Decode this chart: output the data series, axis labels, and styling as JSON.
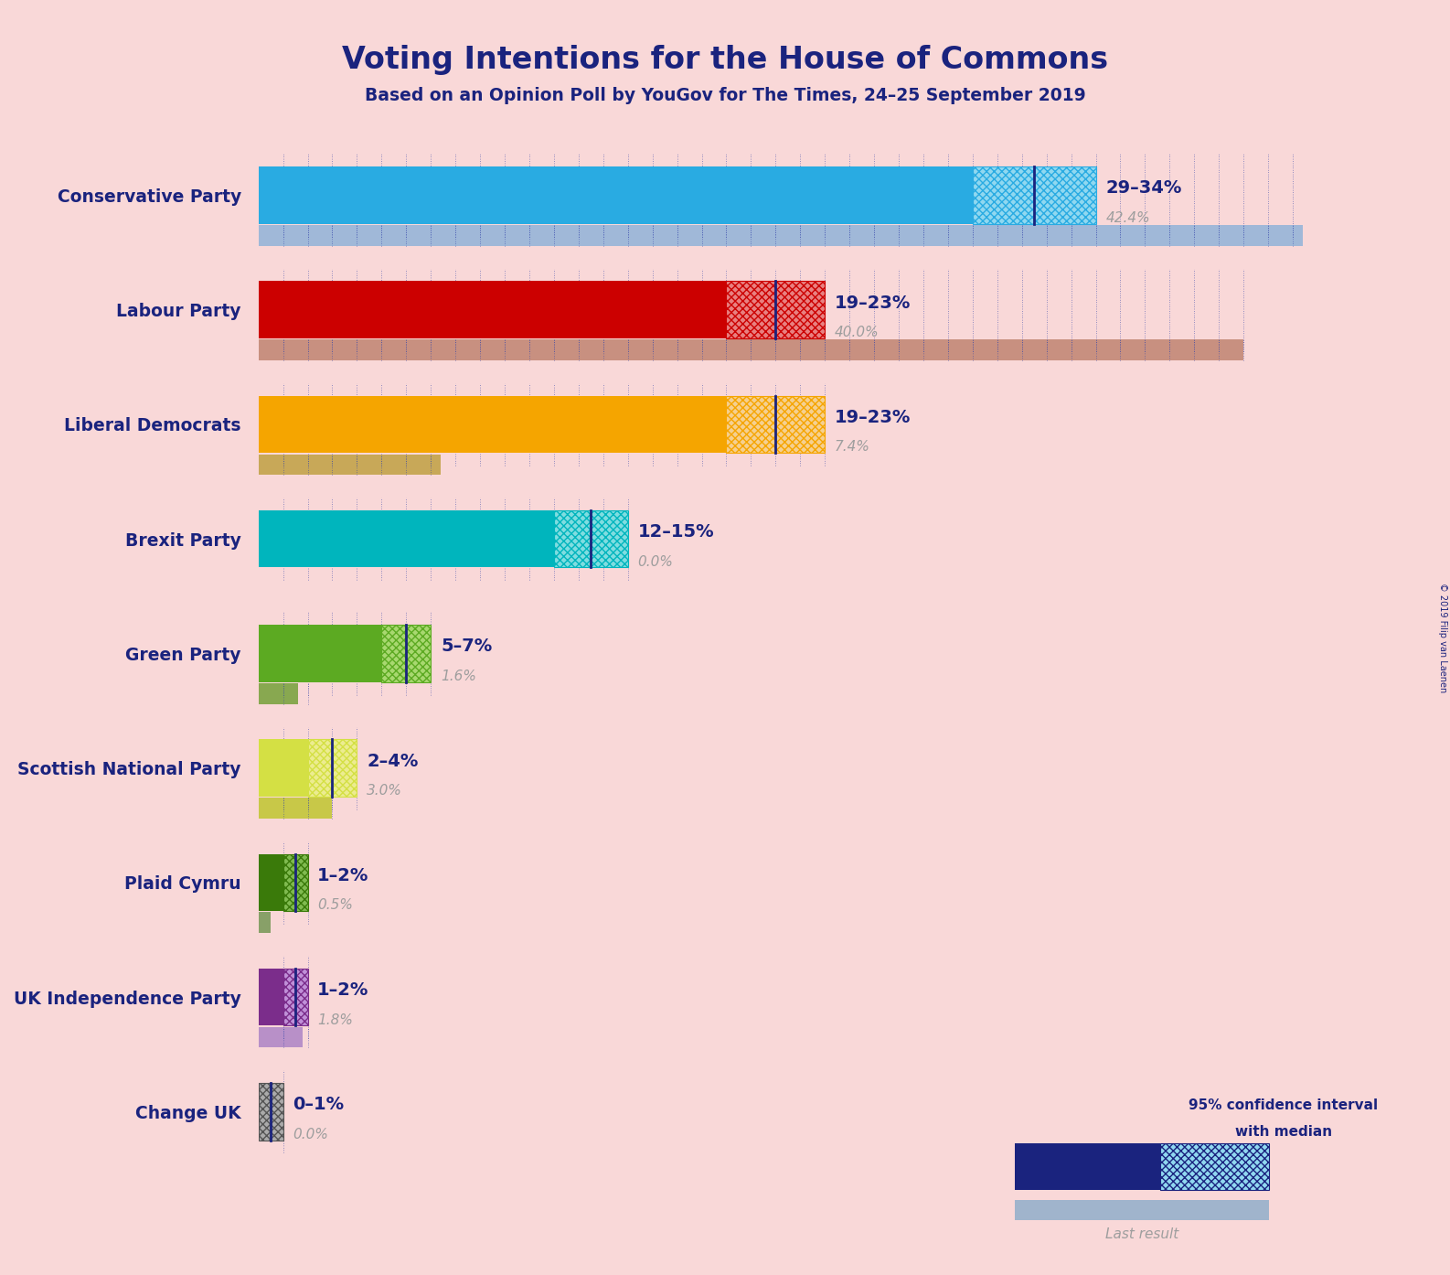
{
  "title": "Voting Intentions for the House of Commons",
  "subtitle": "Based on an Opinion Poll by YouGov for The Times, 24–25 September 2019",
  "copyright": "© 2019 Filip van Laenen",
  "background_color": "#f9d8d8",
  "parties": [
    "Conservative Party",
    "Labour Party",
    "Liberal Democrats",
    "Brexit Party",
    "Green Party",
    "Scottish National Party",
    "Plaid Cymru",
    "UK Independence Party",
    "Change UK"
  ],
  "bar_low": [
    29,
    19,
    19,
    12,
    5,
    2,
    1,
    1,
    0
  ],
  "bar_high": [
    34,
    23,
    23,
    15,
    7,
    4,
    2,
    2,
    1
  ],
  "last_result": [
    42.4,
    40.0,
    7.4,
    0.0,
    1.6,
    3.0,
    0.5,
    1.8,
    0.0
  ],
  "range_labels": [
    "29–34%",
    "19–23%",
    "19–23%",
    "12–15%",
    "5–7%",
    "2–4%",
    "1–2%",
    "1–2%",
    "0–1%"
  ],
  "last_result_labels": [
    "42.4%",
    "40.0%",
    "7.4%",
    "0.0%",
    "1.6%",
    "3.0%",
    "0.5%",
    "1.8%",
    "0.0%"
  ],
  "bar_colors": [
    "#29abe2",
    "#cc0000",
    "#f5a500",
    "#00b5bd",
    "#5caa22",
    "#d4e044",
    "#3a7a0a",
    "#7b2d8b",
    "#555555"
  ],
  "hatch_colors": [
    "#90d8f0",
    "#e88080",
    "#f5d090",
    "#80dde0",
    "#a8d870",
    "#ecec90",
    "#80bb50",
    "#c090d8",
    "#aaaaaa"
  ],
  "last_result_colors": [
    "#a0b8d8",
    "#c89080",
    "#c8a858",
    "#88c0c4",
    "#88a850",
    "#c8c848",
    "#88a068",
    "#b890c8",
    "#989898"
  ],
  "label_color": "#1a237e",
  "last_result_label_color": "#9e9e9e",
  "x_max": 44
}
